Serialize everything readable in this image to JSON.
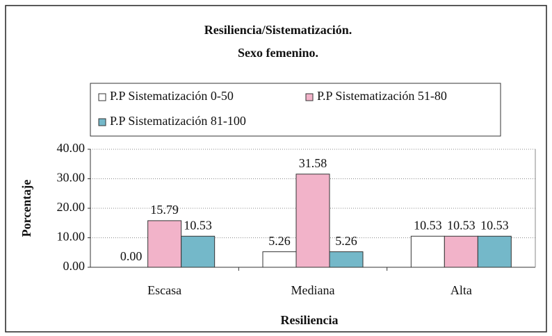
{
  "chart_data": {
    "type": "bar",
    "title": "Resiliencia/Sistematización.",
    "subtitle": "Sexo femenino.",
    "x_label": "Resiliencia",
    "y_label": "Porcentaje",
    "categories": [
      "Escasa",
      "Mediana",
      "Alta"
    ],
    "series": [
      {
        "name": "P.P Sistematización 0-50",
        "color": "#ffffff",
        "values": [
          0,
          5.26,
          10.53
        ],
        "value_labels": [
          "0.00",
          "5.26",
          "10.53"
        ]
      },
      {
        "name": "P.P Sistematización 51-80",
        "color": "#f2b3c9",
        "values": [
          15.79,
          31.58,
          10.53
        ],
        "value_labels": [
          "15.79",
          "31.58",
          "10.53"
        ]
      },
      {
        "name": "P.P Sistematización 81-100",
        "color": "#74b8c9",
        "values": [
          10.53,
          5.26,
          10.53
        ],
        "value_labels": [
          "10.53",
          "5.26",
          "10.53"
        ]
      }
    ],
    "ylim": [
      0,
      40
    ],
    "yticks": [
      {
        "value": 0,
        "label": "0.00"
      },
      {
        "value": 10,
        "label": "10.00"
      },
      {
        "value": 20,
        "label": "20.00"
      },
      {
        "value": 30,
        "label": "30.00"
      },
      {
        "value": 40,
        "label": "40.00"
      }
    ],
    "grid": true,
    "legend": "top"
  }
}
